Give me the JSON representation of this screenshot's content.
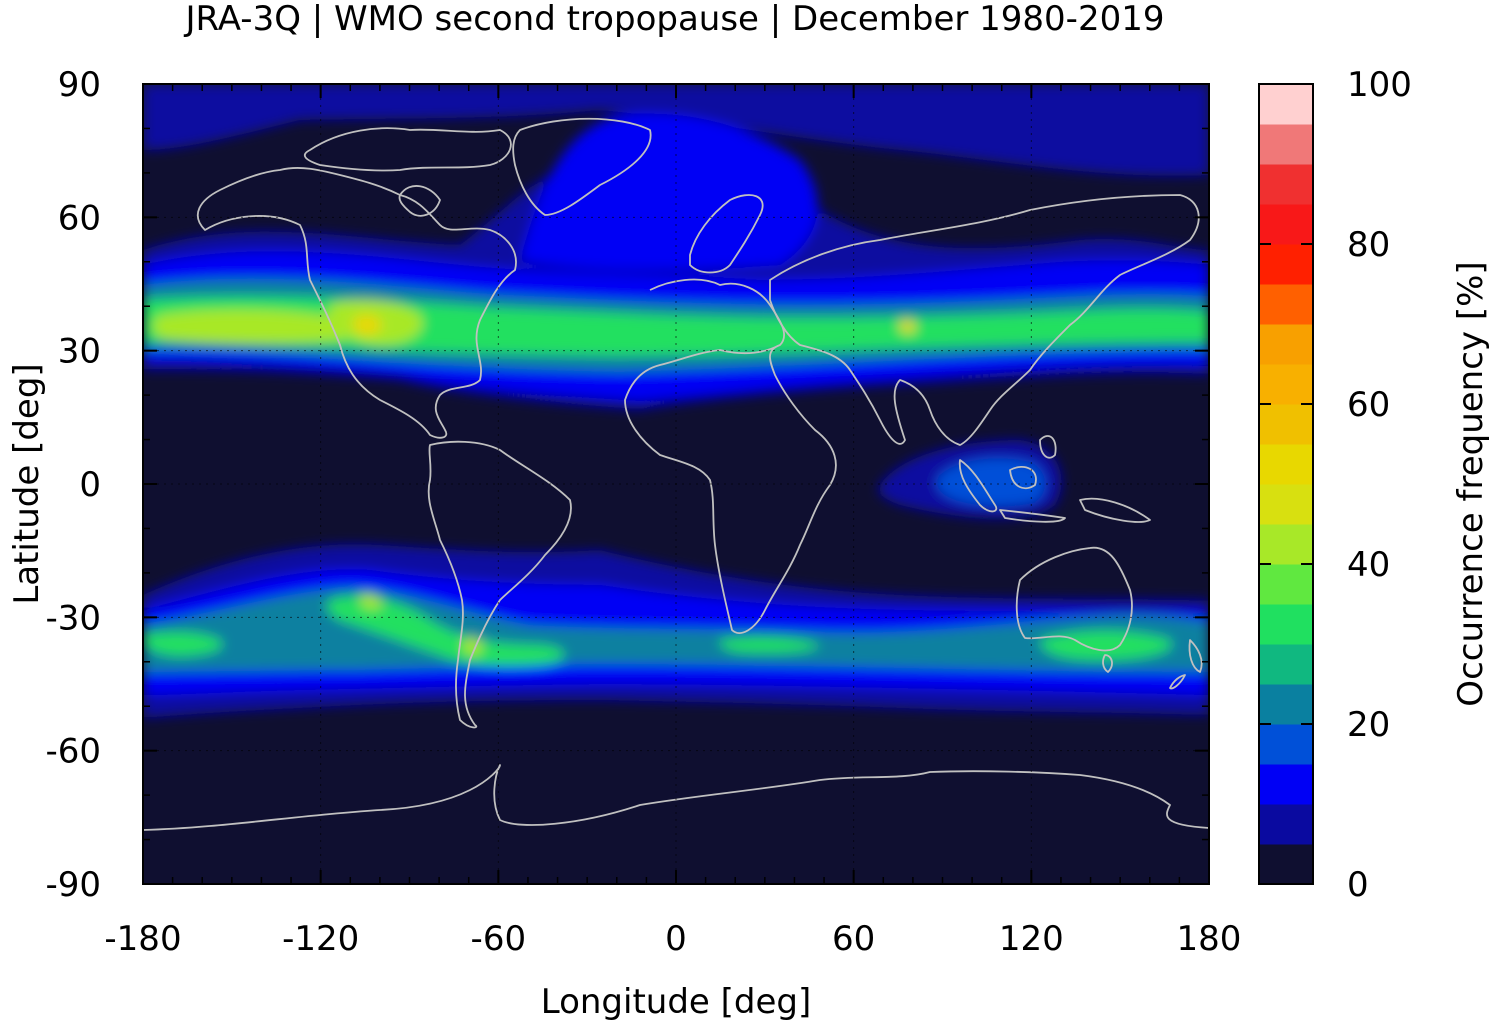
{
  "title": "JRA-3Q | WMO second tropopause | December 1980-2019",
  "map": {
    "background_color": "#0f0f30",
    "coastline_color": "#c0c0c0",
    "xlabel": "Longitude [deg]",
    "ylabel": "Latitude [deg]",
    "xlim": [
      -180,
      180
    ],
    "ylim": [
      -90,
      90
    ],
    "xticks": [
      -180,
      -120,
      -60,
      0,
      60,
      120,
      180
    ],
    "yticks": [
      90,
      60,
      30,
      0,
      -30,
      -60,
      -90
    ],
    "x_tick_labels": [
      "-180",
      "-120",
      "-60",
      "0",
      "60",
      "120",
      "180"
    ],
    "y_tick_labels": [
      "90",
      "60",
      "30",
      "0",
      "-30",
      "-60",
      "-90"
    ]
  },
  "colorbar": {
    "label": "Occurrence frequency [%]",
    "range": [
      0,
      100
    ],
    "ticks": [
      0,
      20,
      40,
      60,
      80,
      100
    ],
    "tick_labels": [
      "0",
      "20",
      "40",
      "60",
      "80",
      "100"
    ],
    "levels": [
      {
        "from": 0,
        "to": 5,
        "color": "#0f0f30"
      },
      {
        "from": 5,
        "to": 10,
        "color": "#0a0aa0"
      },
      {
        "from": 10,
        "to": 15,
        "color": "#0000f5"
      },
      {
        "from": 15,
        "to": 20,
        "color": "#0050d8"
      },
      {
        "from": 20,
        "to": 25,
        "color": "#0a80a0"
      },
      {
        "from": 25,
        "to": 30,
        "color": "#10b880"
      },
      {
        "from": 30,
        "to": 35,
        "color": "#20e060"
      },
      {
        "from": 35,
        "to": 40,
        "color": "#60e840"
      },
      {
        "from": 40,
        "to": 45,
        "color": "#a8e828"
      },
      {
        "from": 45,
        "to": 50,
        "color": "#d8e010"
      },
      {
        "from": 50,
        "to": 55,
        "color": "#e8d800"
      },
      {
        "from": 55,
        "to": 60,
        "color": "#f0c000"
      },
      {
        "from": 60,
        "to": 65,
        "color": "#f8b000"
      },
      {
        "from": 65,
        "to": 70,
        "color": "#f8a000"
      },
      {
        "from": 70,
        "to": 75,
        "color": "#ff6000"
      },
      {
        "from": 75,
        "to": 80,
        "color": "#ff2000"
      },
      {
        "from": 80,
        "to": 85,
        "color": "#f81818"
      },
      {
        "from": 85,
        "to": 90,
        "color": "#f03030"
      },
      {
        "from": 90,
        "to": 95,
        "color": "#f07878"
      },
      {
        "from": 95,
        "to": 100,
        "color": "#ffd0d0"
      }
    ]
  }
}
